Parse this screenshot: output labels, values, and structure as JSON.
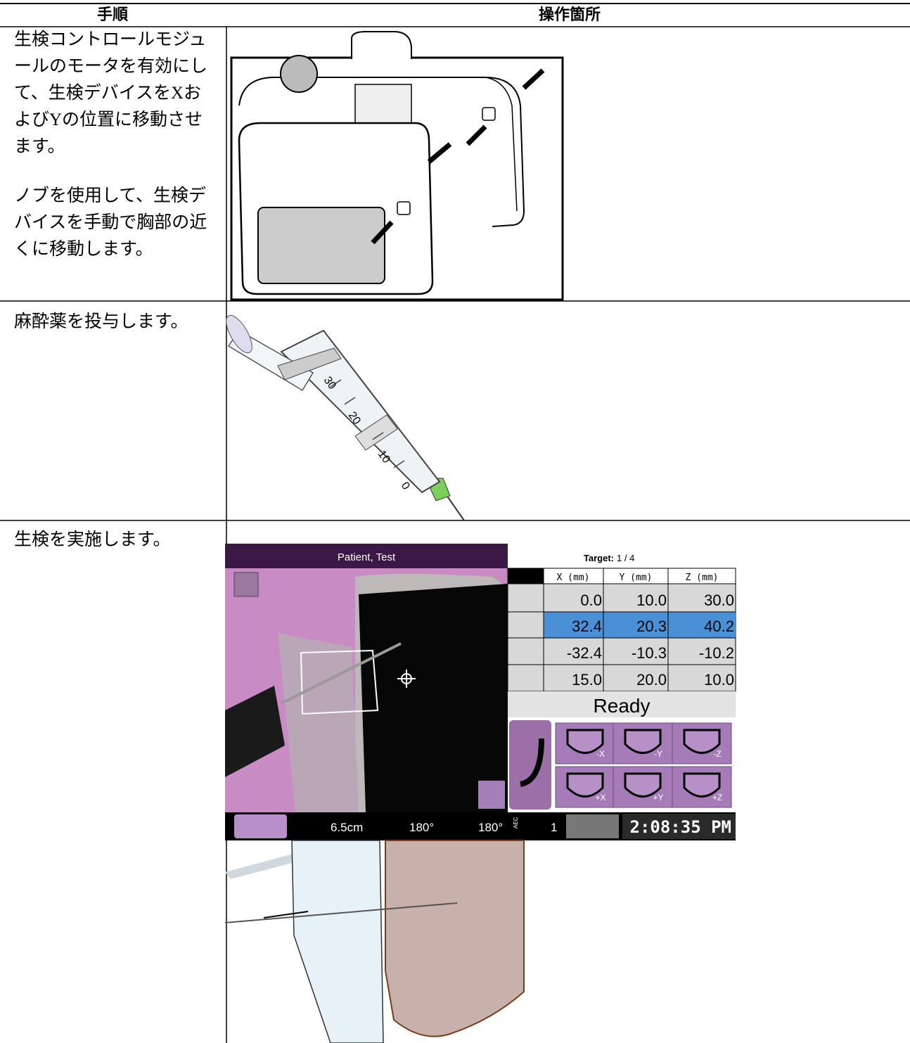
{
  "header": {
    "step": "手順",
    "location": "操作箇所"
  },
  "rows": [
    {
      "paragraphs": [
        [
          "生検コントロールモジュ",
          "ールのモータを有効にし",
          "て、生検デバイスをXお",
          "よびYの位置に移動させ",
          "ます。"
        ],
        [
          "ノブを使用して、生検デ",
          "バイスを手動で胸部の近",
          "くに移動します。"
        ]
      ]
    },
    {
      "paragraphs": [
        [
          "麻酔薬を投与します。"
        ]
      ]
    },
    {
      "paragraphs": [
        [
          "生検を実施します。"
        ]
      ]
    }
  ],
  "syringe": {
    "scale": [
      "30",
      "20",
      "10",
      "0"
    ]
  },
  "screen": {
    "patient": "Patient, Test",
    "target_label": "Target:",
    "target": "1 / 4",
    "columns": [
      "X (mm)",
      "Y (mm)",
      "Z (mm)"
    ],
    "rows": [
      [
        "0.0",
        "10.0",
        "30.0"
      ],
      [
        "32.4",
        "20.3",
        "40.2"
      ],
      [
        "-32.4",
        "-10.3",
        "-10.2"
      ],
      [
        "15.0",
        "20.0",
        "10.0"
      ]
    ],
    "status": "Ready",
    "buttons": [
      "-X",
      "-Y",
      "-Z",
      "+X",
      "+Y",
      "+Z"
    ],
    "status_bar": {
      "thickness": "6.5cm",
      "angle_1": "180°",
      "angle_2": "180°",
      "aec_label": "AEC",
      "aec": "1",
      "time": "2:08:35 PM"
    }
  }
}
